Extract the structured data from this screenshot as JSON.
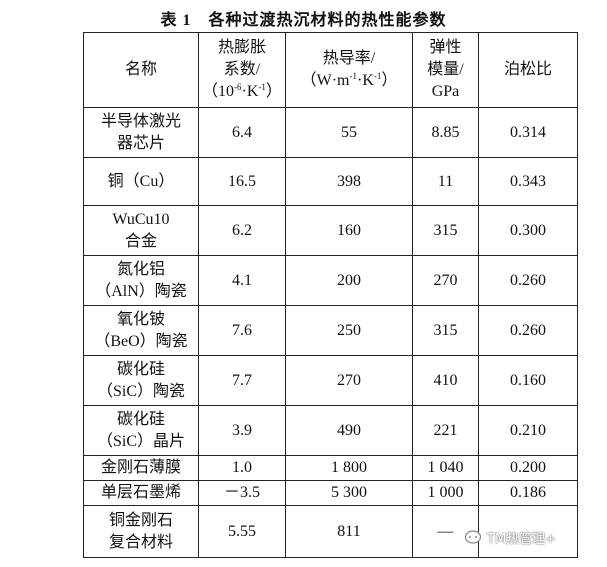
{
  "title": "表 1　各种过渡热沉材料的热性能参数",
  "table": {
    "header": [
      {
        "lines": [
          "名称"
        ]
      },
      {
        "lines": [
          "热膨胀",
          "系数/"
        ],
        "unit": [
          "（10",
          "-6",
          "·K",
          "-1",
          "）"
        ]
      },
      {
        "lines": [
          "热导率/"
        ],
        "unit": [
          "（W·m",
          "-1",
          "·K",
          "-1",
          "）"
        ]
      },
      {
        "lines": [
          "弹性",
          "模量/",
          "GPa"
        ]
      },
      {
        "lines": [
          "泊松比"
        ]
      }
    ],
    "rows": [
      [
        [
          "半导体激光",
          "器芯片"
        ],
        "6.4",
        "55",
        "8.85",
        "0.314"
      ],
      [
        [
          "铜（Cu）"
        ],
        "16.5",
        "398",
        "11",
        "0.343"
      ],
      [
        [
          "WuCu10",
          "合金"
        ],
        "6.2",
        "160",
        "315",
        "0.300"
      ],
      [
        [
          "氮化铝",
          "（AlN）陶瓷"
        ],
        "4.1",
        "200",
        "270",
        "0.260"
      ],
      [
        [
          "氧化铍",
          "（BeO）陶瓷"
        ],
        "7.6",
        "250",
        "315",
        "0.260"
      ],
      [
        [
          "碳化硅",
          "（SiC）陶瓷"
        ],
        "7.7",
        "270",
        "410",
        "0.160"
      ],
      [
        [
          "碳化硅",
          "（SiC）晶片"
        ],
        "3.9",
        "490",
        "221",
        "0.210"
      ],
      [
        [
          "金刚石薄膜"
        ],
        "1.0",
        "1 800",
        "1 040",
        "0.200"
      ],
      [
        [
          "单层石墨烯"
        ],
        "－3.5",
        "5 300",
        "1 000",
        "0.186"
      ],
      [
        [
          "铜金刚石",
          "复合材料"
        ],
        "5.55",
        "811",
        "—"
      ]
    ]
  },
  "watermark": "TM热管理+"
}
